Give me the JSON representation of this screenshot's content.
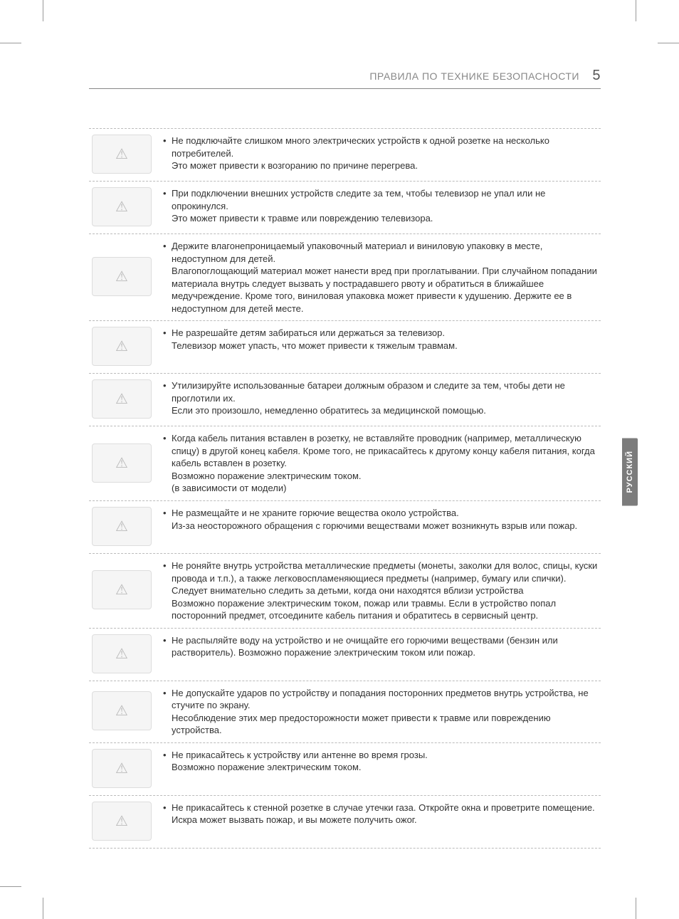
{
  "header": {
    "title": "ПРАВИЛА ПО ТЕХНИКЕ БЕЗОПАСНОСТИ",
    "pagenum": "5"
  },
  "sidetab": "РУССКИЙ",
  "rows": [
    {
      "icon": "overloaded-outlet-icon",
      "main": "Не подключайте слишком много электрических устройств к одной розетке на несколько потребителей.",
      "extra": "Это может привести к возгоранию по причине перегрева."
    },
    {
      "icon": "tv-tipping-icon",
      "main": "При подключении внешних устройств следите за тем, чтобы телевизор не упал или не опрокинулся.",
      "extra": "Это может привести к травме или повреждению телевизора."
    },
    {
      "icon": "children-packaging-icon",
      "main": "Держите влагонепроницаемый упаковочный материал и виниловую упаковку в месте, недоступном для детей.",
      "extra": "Влагопоглощающий материал может нанести вред при проглатывании. При случайном попадании материала внутрь следует вызвать у пострадавшего рвоту и обратиться в ближайшее медучреждение. Кроме того, виниловая упаковка может привести к удушению. Держите ее в недоступном для детей месте."
    },
    {
      "icon": "child-climbing-tv-icon",
      "main": "Не разрешайте детям забираться или держаться за телевизор.",
      "extra": "Телевизор может упасть, что может привести к тяжелым травмам."
    },
    {
      "icon": "battery-disposal-icon",
      "main": "Утилизируйте использованные батареи должным образом и следите за тем, чтобы дети не проглотили их.",
      "extra": "Если это произошло, немедленно обратитесь за медицинской помощью."
    },
    {
      "icon": "cable-conductor-icon",
      "main": "Когда кабель питания вставлен в розетку, не вставляйте проводник (например, металлическую спицу) в другой конец кабеля. Кроме того, не прикасайтесь к другому концу кабеля питания, когда кабель вставлен в розетку.",
      "extra": "Возможно поражение электрическим током.\n(в зависимости от модели)"
    },
    {
      "icon": "flammable-near-tv-icon",
      "main": "Не размещайте и не храните горючие вещества около устройства.",
      "extra": "Из-за неосторожного обращения с горючими веществами может возникнуть взрыв или пожар."
    },
    {
      "icon": "objects-in-tv-icon",
      "main": "Не роняйте внутрь устройства металлические предметы (монеты, заколки для волос, спицы, куски провода и т.п.), а также легковоспламеняющиеся предметы (например, бумагу или спички). Следует внимательно следить за детьми, когда они находятся вблизи устройства",
      "extra": "Возможно поражение электрическим током, пожар или травмы. Если в устройство попал посторонний предмет, отсоедините кабель питания и обратитесь в сервисный центр."
    },
    {
      "icon": "water-spray-icon",
      "main": "Не распыляйте воду на устройство и не очищайте его горючими веществами (бензин или растворитель). Возможно поражение электрическим током или пожар.",
      "extra": ""
    },
    {
      "icon": "impact-tv-icon",
      "main": "Не допускайте ударов по устройству и попадания посторонних предметов внутрь устройства, не стучите по экрану.",
      "extra": "Несоблюдение этих мер предосторожности может привести к травме или повреждению устройства."
    },
    {
      "icon": "lightning-antenna-icon",
      "main": "Не прикасайтесь к устройству или антенне во время грозы.",
      "extra": "Возможно поражение электрическим током."
    },
    {
      "icon": "gas-leak-icon",
      "main": "Не прикасайтесь к стенной розетке в случае утечки газа. Откройте окна и проветрите помещение.",
      "extra": "Искра может вызвать пожар, и вы можете получить ожог."
    }
  ]
}
